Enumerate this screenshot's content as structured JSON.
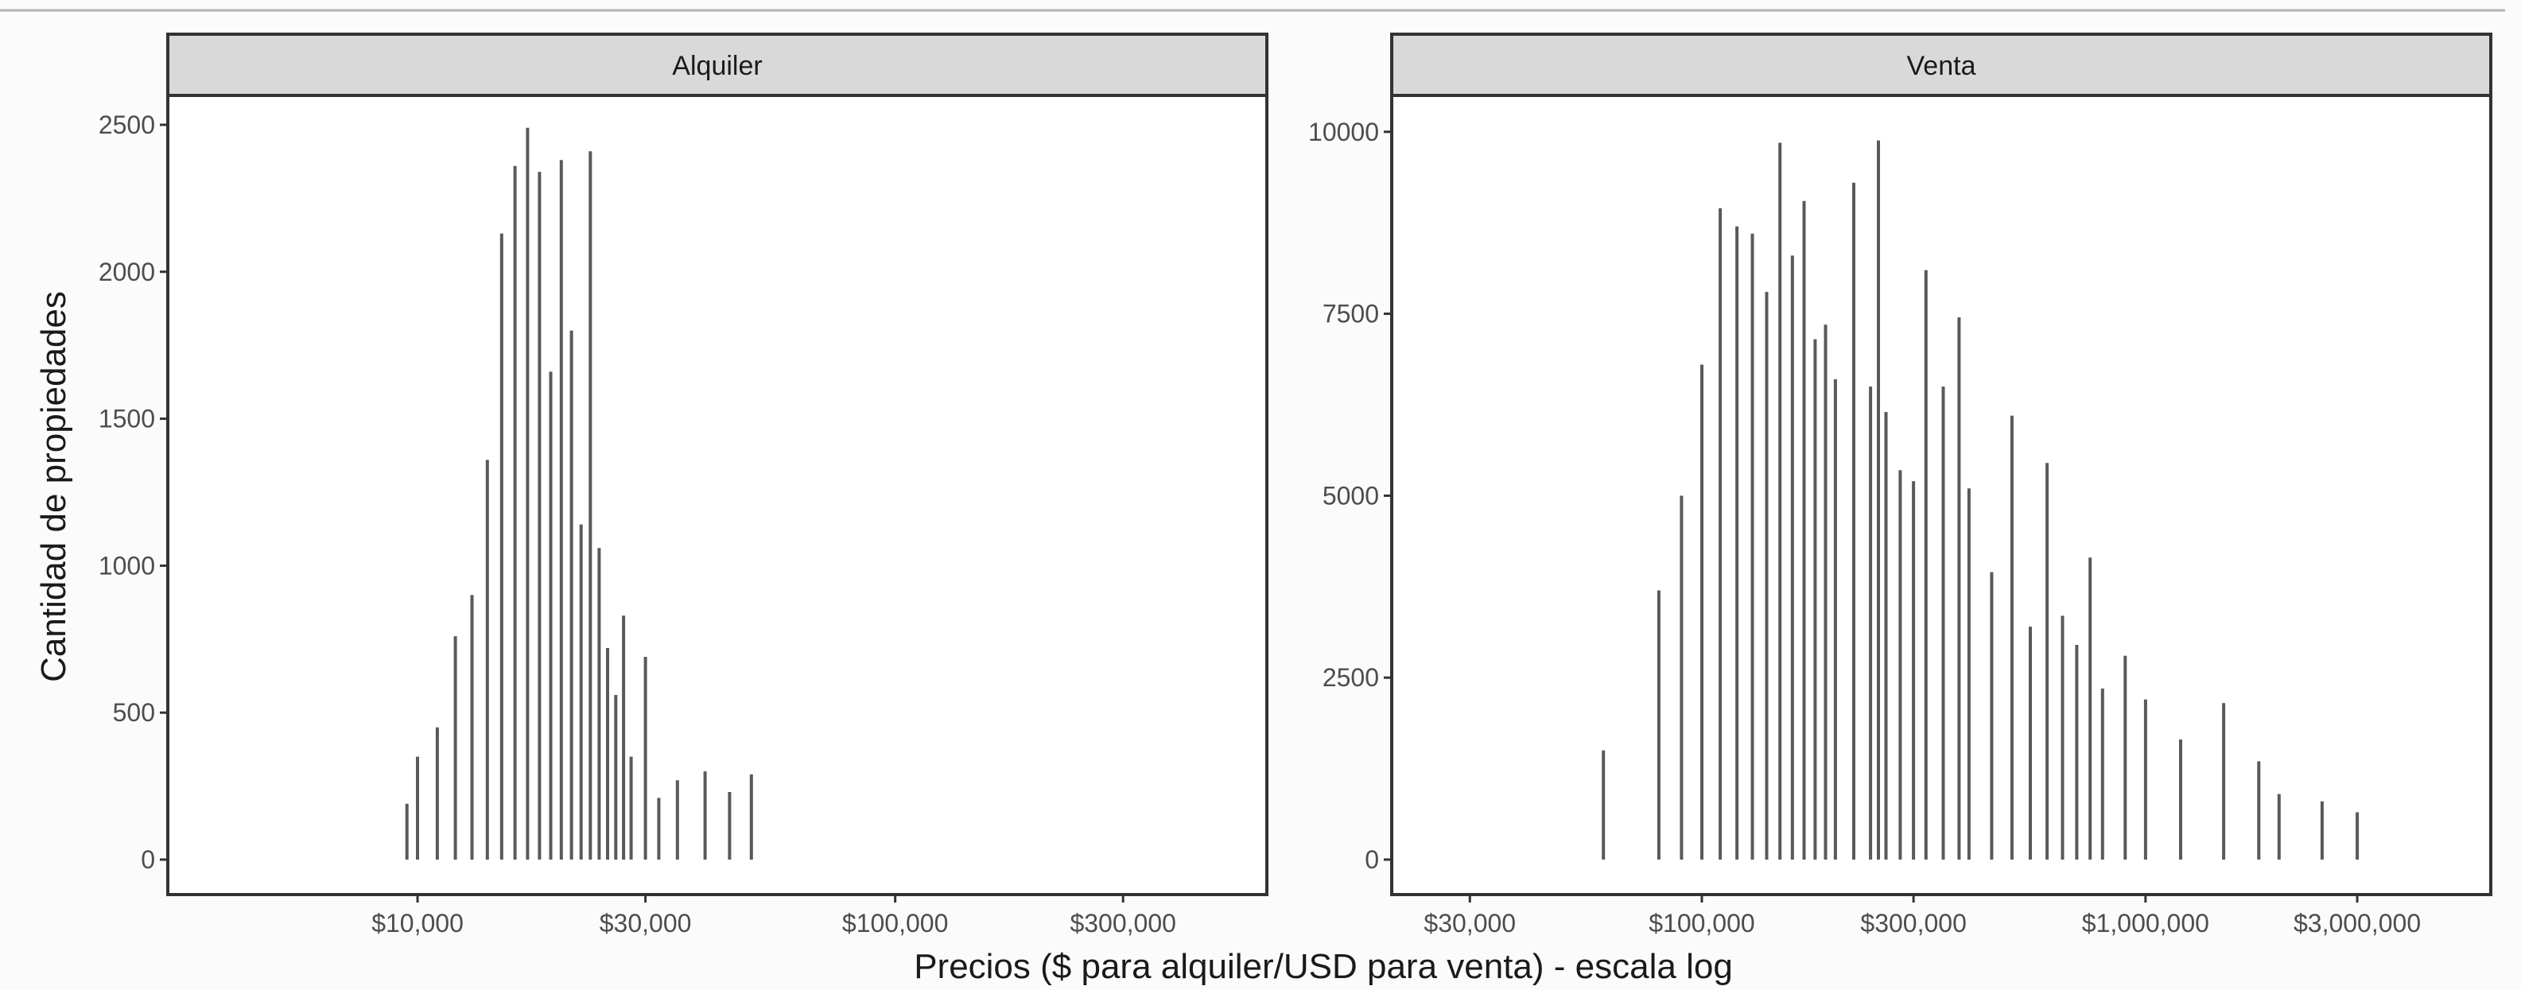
{
  "colors": {
    "bar": "#595959",
    "strip_fill": "#d9d9d9",
    "frame": "#333333",
    "text": "#1a1a1a",
    "tick_text": "#4d4d4d",
    "background": "#fbfbfb",
    "panel_background": "#ffffff",
    "top_rule": "#b3b3b3"
  },
  "figure": {
    "xlabel": "Precios ($ para alquiler/USD para venta) - escala log",
    "ylabel": "Cantidad de propiedades"
  },
  "chart_data": [
    {
      "type": "bar",
      "facet": "Alquiler",
      "x_scale": "log",
      "xlim": [
        3000,
        600000
      ],
      "ylim": [
        0,
        2600
      ],
      "x_ticks": [
        10000,
        30000,
        100000,
        300000
      ],
      "x_tick_labels": [
        "$10,000",
        "$30,000",
        "$100,000",
        "$300,000"
      ],
      "y_ticks": [
        0,
        500,
        1000,
        1500,
        2000,
        2500
      ],
      "y_tick_labels": [
        "0",
        "500",
        "1000",
        "1500",
        "2000",
        "2500"
      ],
      "grid": false,
      "legend": "none",
      "x": [
        9500,
        10000,
        11000,
        12000,
        13000,
        14000,
        15000,
        16000,
        17000,
        18000,
        19000,
        20000,
        21000,
        22000,
        23000,
        24000,
        25000,
        26000,
        27000,
        28000,
        30000,
        32000,
        35000,
        40000,
        45000,
        50000
      ],
      "values": [
        190,
        350,
        450,
        760,
        900,
        1360,
        2130,
        2360,
        2490,
        2340,
        1660,
        2380,
        1800,
        1140,
        2410,
        1060,
        720,
        560,
        830,
        350,
        690,
        210,
        270,
        300,
        230,
        290
      ]
    },
    {
      "type": "bar",
      "facet": "Venta",
      "x_scale": "log",
      "xlim": [
        20000,
        6000000
      ],
      "ylim": [
        0,
        10500
      ],
      "x_ticks": [
        30000,
        100000,
        300000,
        1000000,
        3000000
      ],
      "x_tick_labels": [
        "$30,000",
        "$100,000",
        "$300,000",
        "$1,000,000",
        "$3,000,000"
      ],
      "y_ticks": [
        0,
        2500,
        5000,
        7500,
        10000
      ],
      "y_tick_labels": [
        "0",
        "2500",
        "5000",
        "7500",
        "10000"
      ],
      "grid": false,
      "legend": "none",
      "x": [
        60000,
        80000,
        90000,
        100000,
        110000,
        120000,
        130000,
        140000,
        150000,
        160000,
        170000,
        180000,
        190000,
        200000,
        220000,
        240000,
        250000,
        260000,
        280000,
        300000,
        320000,
        350000,
        380000,
        400000,
        450000,
        500000,
        550000,
        600000,
        650000,
        700000,
        750000,
        800000,
        900000,
        1000000,
        1200000,
        1500000,
        1800000,
        2000000,
        2500000,
        3000000
      ],
      "values": [
        1500,
        3700,
        5000,
        6800,
        8950,
        8700,
        8600,
        7800,
        9850,
        8300,
        9050,
        7150,
        7350,
        6600,
        9300,
        6500,
        9880,
        6150,
        5350,
        5200,
        8100,
        6500,
        7450,
        5100,
        3950,
        6100,
        3200,
        5450,
        3350,
        2950,
        4150,
        2350,
        2800,
        2200,
        1650,
        2150,
        1350,
        900,
        800,
        650
      ]
    }
  ]
}
